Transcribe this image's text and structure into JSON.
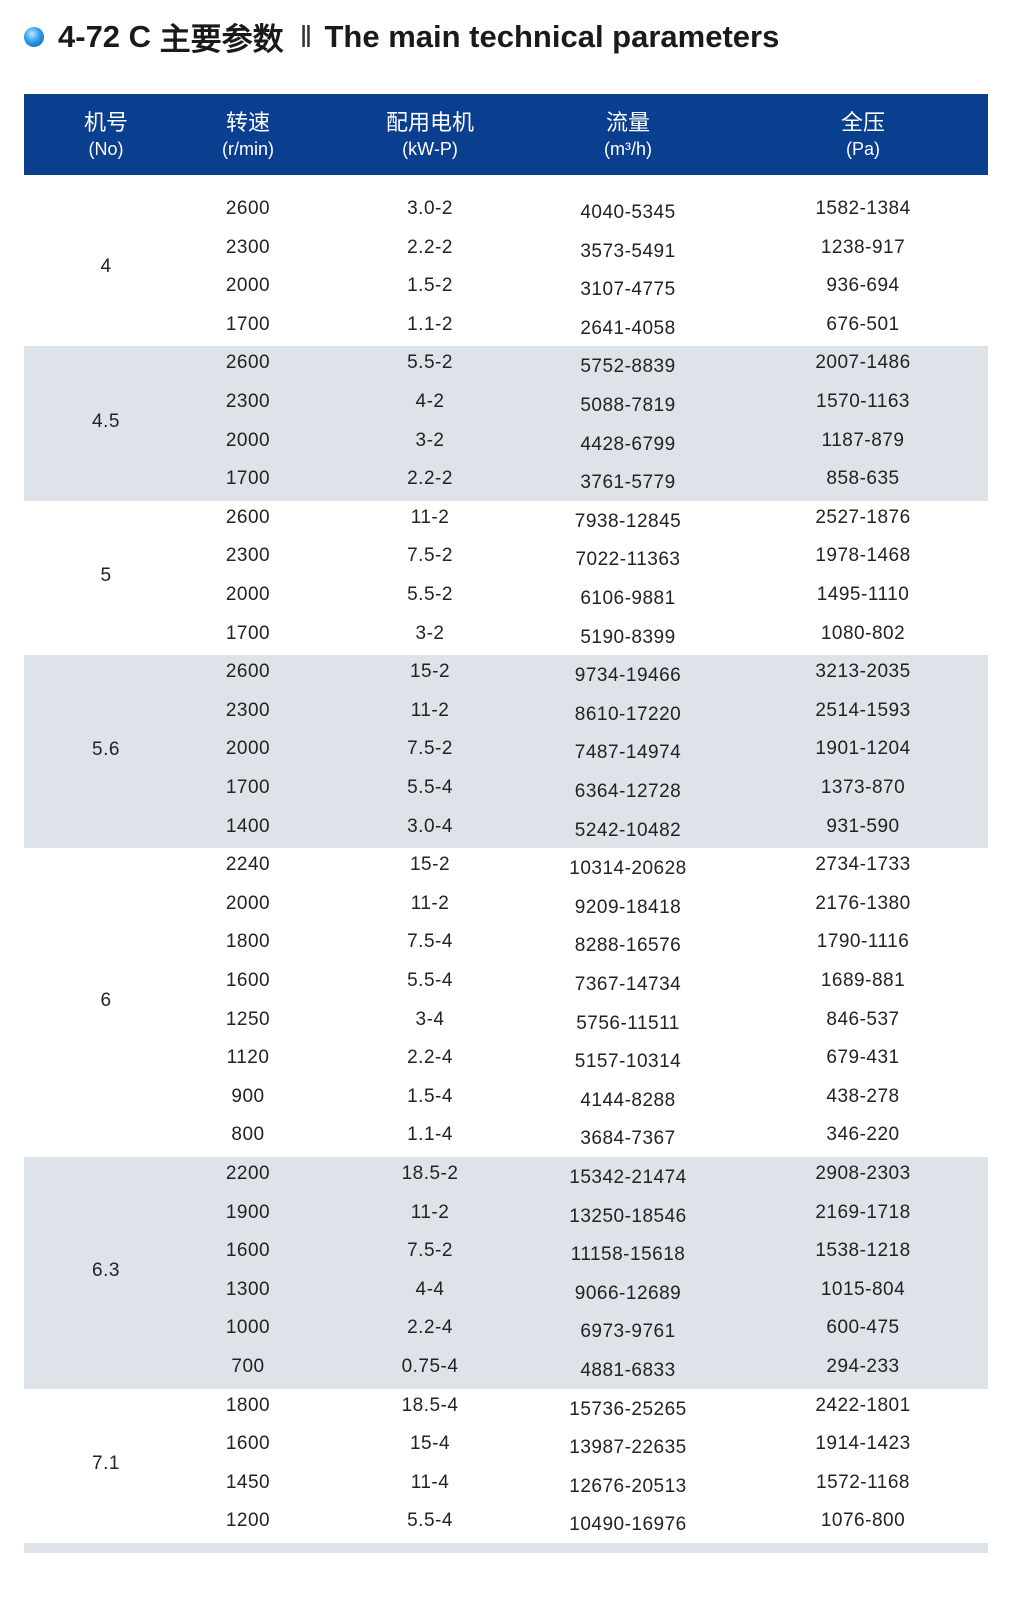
{
  "title": {
    "model": "4-72 C",
    "cn": "主要参数",
    "separator": "‖",
    "en": "The main technical parameters"
  },
  "header": [
    {
      "cn": "机号",
      "en": "(No)"
    },
    {
      "cn": "转速",
      "en": "(r/min)"
    },
    {
      "cn": "配用电机",
      "en": "(kW-P)"
    },
    {
      "cn": "流量",
      "en": "(m³/h)"
    },
    {
      "cn": "全压",
      "en": "(Pa)"
    }
  ],
  "colors": {
    "header_bg": "#0a3e8f",
    "shade": "#dde3e9"
  },
  "groups": [
    {
      "no": "4",
      "rows": [
        [
          "2600",
          "3.0-2",
          "4040-5345",
          "1582-1384"
        ],
        [
          "2300",
          "2.2-2",
          "3573-5491",
          "1238-917"
        ],
        [
          "2000",
          "1.5-2",
          "3107-4775",
          "936-694"
        ],
        [
          "1700",
          "1.1-2",
          "2641-4058",
          "676-501"
        ]
      ]
    },
    {
      "no": "4.5",
      "rows": [
        [
          "2600",
          "5.5-2",
          "5752-8839",
          "2007-1486"
        ],
        [
          "2300",
          "4-2",
          "5088-7819",
          "1570-1163"
        ],
        [
          "2000",
          "3-2",
          "4428-6799",
          "1187-879"
        ],
        [
          "1700",
          "2.2-2",
          "3761-5779",
          "858-635"
        ]
      ]
    },
    {
      "no": "5",
      "rows": [
        [
          "2600",
          "11-2",
          "7938-12845",
          "2527-1876"
        ],
        [
          "2300",
          "7.5-2",
          "7022-11363",
          "1978-1468"
        ],
        [
          "2000",
          "5.5-2",
          "6106-9881",
          "1495-1110"
        ],
        [
          "1700",
          "3-2",
          "5190-8399",
          "1080-802"
        ]
      ]
    },
    {
      "no": "5.6",
      "rows": [
        [
          "2600",
          "15-2",
          "9734-19466",
          "3213-2035"
        ],
        [
          "2300",
          "11-2",
          "8610-17220",
          "2514-1593"
        ],
        [
          "2000",
          "7.5-2",
          "7487-14974",
          "1901-1204"
        ],
        [
          "1700",
          "5.5-4",
          "6364-12728",
          "1373-870"
        ],
        [
          "1400",
          "3.0-4",
          "5242-10482",
          "931-590"
        ]
      ]
    },
    {
      "no": "6",
      "rows": [
        [
          "2240",
          "15-2",
          "10314-20628",
          "2734-1733"
        ],
        [
          "2000",
          "11-2",
          "9209-18418",
          "2176-1380"
        ],
        [
          "1800",
          "7.5-4",
          "8288-16576",
          "1790-1116"
        ],
        [
          "1600",
          "5.5-4",
          "7367-14734",
          "1689-881"
        ],
        [
          "1250",
          "3-4",
          "5756-11511",
          "846-537"
        ],
        [
          "1120",
          "2.2-4",
          "5157-10314",
          "679-431"
        ],
        [
          "900",
          "1.5-4",
          "4144-8288",
          "438-278"
        ],
        [
          "800",
          "1.1-4",
          "3684-7367",
          "346-220"
        ]
      ]
    },
    {
      "no": "6.3",
      "rows": [
        [
          "2200",
          "18.5-2",
          "15342-21474",
          "2908-2303"
        ],
        [
          "1900",
          "11-2",
          "13250-18546",
          "2169-1718"
        ],
        [
          "1600",
          "7.5-2",
          "11158-15618",
          "1538-1218"
        ],
        [
          "1300",
          "4-4",
          "9066-12689",
          "1015-804"
        ],
        [
          "1000",
          "2.2-4",
          "6973-9761",
          "600-475"
        ],
        [
          "700",
          "0.75-4",
          "4881-6833",
          "294-233"
        ]
      ]
    },
    {
      "no": "7.1",
      "rows": [
        [
          "1800",
          "18.5-4",
          "15736-25265",
          "2422-1801"
        ],
        [
          "1600",
          "15-4",
          "13987-22635",
          "1914-1423"
        ],
        [
          "1450",
          "11-4",
          "12676-20513",
          "1572-1168"
        ],
        [
          "1200",
          "5.5-4",
          "10490-16976",
          "1076-800"
        ]
      ]
    }
  ]
}
